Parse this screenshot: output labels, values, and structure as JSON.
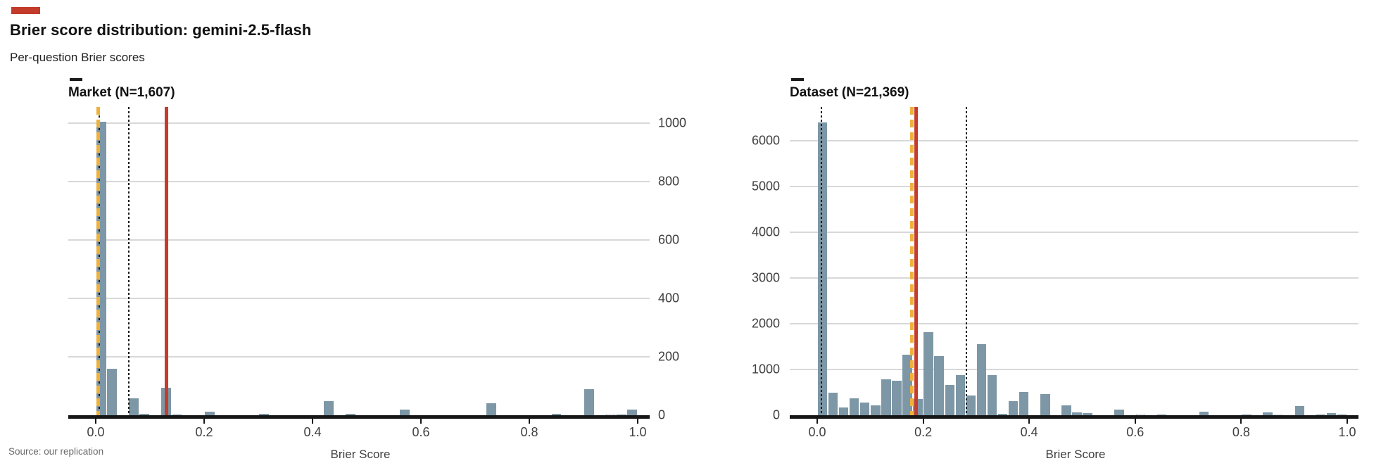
{
  "accent": {
    "tag_color": "#c23b2b",
    "bar_color": "#7d97a6",
    "median_line_color": "#edb13c",
    "mean_line_color": "#c53c2d",
    "percentile_line_color": "#1a1a1a"
  },
  "header": {
    "title": "Brier score distribution: gemini-2.5-flash",
    "subtitle": "Per-question Brier scores"
  },
  "source": "Source: our replication",
  "chart_data": [
    {
      "type": "bar",
      "title": "Market (N=1,607)",
      "xlabel": "Brier Score",
      "ylabel": "",
      "x_ticks": [
        "0.0",
        "0.2",
        "0.4",
        "0.6",
        "0.8",
        "1.0"
      ],
      "y_ticks": [
        0,
        200,
        400,
        600,
        800,
        1000
      ],
      "ylim": [
        0,
        1055
      ],
      "xlim": [
        -0.05,
        1.02
      ],
      "bin_width": 0.02,
      "grid": true,
      "y_axis_side": "right",
      "bars": [
        {
          "x": 0.0,
          "count": 1005
        },
        {
          "x": 0.02,
          "count": 160
        },
        {
          "x": 0.06,
          "count": 58
        },
        {
          "x": 0.08,
          "count": 5
        },
        {
          "x": 0.12,
          "count": 93
        },
        {
          "x": 0.14,
          "count": 3
        },
        {
          "x": 0.2,
          "count": 12
        },
        {
          "x": 0.3,
          "count": 4
        },
        {
          "x": 0.42,
          "count": 48
        },
        {
          "x": 0.46,
          "count": 5
        },
        {
          "x": 0.56,
          "count": 20
        },
        {
          "x": 0.72,
          "count": 42
        },
        {
          "x": 0.84,
          "count": 5
        },
        {
          "x": 0.9,
          "count": 90
        },
        {
          "x": 0.94,
          "count": 5,
          "fill": "white"
        },
        {
          "x": 0.96,
          "count": 3
        },
        {
          "x": 0.98,
          "count": 20
        }
      ],
      "vlines": [
        {
          "x": 0.006,
          "style": "dotted",
          "color": "#1a1a1a",
          "name": "percentile-line"
        },
        {
          "x": 0.061,
          "style": "dotted",
          "color": "#1a1a1a",
          "name": "percentile-line"
        },
        {
          "x": 0.004,
          "style": "dashed",
          "color": "#edb13c",
          "name": "median-line"
        },
        {
          "x": 0.131,
          "style": "solid",
          "color": "#c53c2d",
          "name": "mean-line"
        }
      ]
    },
    {
      "type": "bar",
      "title": "Dataset (N=21,369)",
      "xlabel": "Brier Score",
      "ylabel": "",
      "x_ticks": [
        "0.0",
        "0.2",
        "0.4",
        "0.6",
        "0.8",
        "1.0"
      ],
      "y_ticks": [
        0,
        1000,
        2000,
        3000,
        4000,
        5000,
        6000
      ],
      "ylim": [
        0,
        6720
      ],
      "xlim": [
        -0.05,
        1.02
      ],
      "bin_width": 0.02,
      "grid": true,
      "y_axis_side": "left",
      "bars": [
        {
          "x": 0.0,
          "count": 6400
        },
        {
          "x": 0.02,
          "count": 500
        },
        {
          "x": 0.04,
          "count": 170
        },
        {
          "x": 0.06,
          "count": 370
        },
        {
          "x": 0.08,
          "count": 270
        },
        {
          "x": 0.1,
          "count": 220
        },
        {
          "x": 0.12,
          "count": 780
        },
        {
          "x": 0.14,
          "count": 750
        },
        {
          "x": 0.16,
          "count": 1320
        },
        {
          "x": 0.18,
          "count": 360
        },
        {
          "x": 0.2,
          "count": 1810
        },
        {
          "x": 0.22,
          "count": 1300
        },
        {
          "x": 0.24,
          "count": 660
        },
        {
          "x": 0.26,
          "count": 880
        },
        {
          "x": 0.28,
          "count": 430
        },
        {
          "x": 0.3,
          "count": 1550
        },
        {
          "x": 0.32,
          "count": 870
        },
        {
          "x": 0.34,
          "count": 25
        },
        {
          "x": 0.36,
          "count": 310
        },
        {
          "x": 0.38,
          "count": 510
        },
        {
          "x": 0.42,
          "count": 460
        },
        {
          "x": 0.46,
          "count": 220
        },
        {
          "x": 0.48,
          "count": 65
        },
        {
          "x": 0.5,
          "count": 40
        },
        {
          "x": 0.56,
          "count": 120
        },
        {
          "x": 0.6,
          "count": 30,
          "fill": "white"
        },
        {
          "x": 0.64,
          "count": 20
        },
        {
          "x": 0.72,
          "count": 75
        },
        {
          "x": 0.8,
          "count": 12
        },
        {
          "x": 0.84,
          "count": 60
        },
        {
          "x": 0.86,
          "count": 15,
          "fill": "white"
        },
        {
          "x": 0.9,
          "count": 200
        },
        {
          "x": 0.94,
          "count": 20
        },
        {
          "x": 0.96,
          "count": 40
        },
        {
          "x": 0.98,
          "count": 12
        }
      ],
      "vlines": [
        {
          "x": 0.008,
          "style": "dotted",
          "color": "#1a1a1a",
          "name": "percentile-line"
        },
        {
          "x": 0.282,
          "style": "dotted",
          "color": "#1a1a1a",
          "name": "percentile-line"
        },
        {
          "x": 0.179,
          "style": "dashed",
          "color": "#edb13c",
          "name": "median-line"
        },
        {
          "x": 0.186,
          "style": "solid",
          "color": "#c53c2d",
          "name": "mean-line"
        }
      ]
    }
  ]
}
